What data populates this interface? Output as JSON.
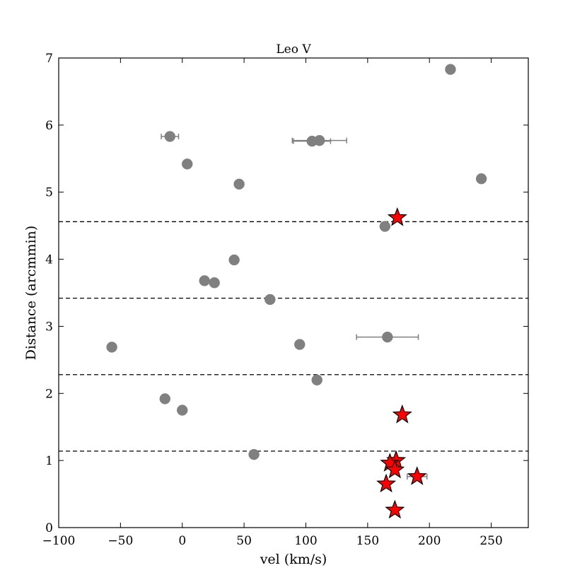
{
  "chart_data": {
    "type": "scatter",
    "title": "Leo V",
    "xlabel": "vel (km/s)",
    "ylabel": "Distance (arcmmin)",
    "xlim": [
      -100,
      280
    ],
    "ylim": [
      0,
      7
    ],
    "xticks": [
      -100,
      -50,
      0,
      50,
      100,
      150,
      200,
      250
    ],
    "xtick_labels": [
      "−100",
      "−50",
      "0",
      "50",
      "100",
      "150",
      "200",
      "250"
    ],
    "yticks": [
      0,
      1,
      2,
      3,
      4,
      5,
      6,
      7
    ],
    "ytick_labels": [
      "0",
      "1",
      "2",
      "3",
      "4",
      "5",
      "6",
      "7"
    ],
    "grid": false,
    "hlines": [
      1.14,
      2.28,
      3.42,
      4.56
    ],
    "series": [
      {
        "marker": "circle",
        "color": "#808080",
        "points": [
          {
            "x": 217,
            "y": 6.83
          },
          {
            "x": -10,
            "y": 5.83,
            "xerr": 7
          },
          {
            "x": 105,
            "y": 5.76,
            "xerr": 15
          },
          {
            "x": 111,
            "y": 5.77,
            "xerr": 22
          },
          {
            "x": 4,
            "y": 5.42
          },
          {
            "x": 242,
            "y": 5.2,
            "xerr": 3
          },
          {
            "x": 46,
            "y": 5.12
          },
          {
            "x": 164,
            "y": 4.49
          },
          {
            "x": 42,
            "y": 3.99
          },
          {
            "x": 18,
            "y": 3.68
          },
          {
            "x": 26,
            "y": 3.65
          },
          {
            "x": 71,
            "y": 3.4
          },
          {
            "x": 166,
            "y": 2.84,
            "xerr": 25
          },
          {
            "x": -57,
            "y": 2.69
          },
          {
            "x": 95,
            "y": 2.73
          },
          {
            "x": 109,
            "y": 2.2
          },
          {
            "x": -14,
            "y": 1.92
          },
          {
            "x": 0,
            "y": 1.75
          },
          {
            "x": 58,
            "y": 1.09
          }
        ]
      },
      {
        "marker": "star",
        "color": "#ff0000",
        "points": [
          {
            "x": 174,
            "y": 4.62
          },
          {
            "x": 178,
            "y": 1.68
          },
          {
            "x": 173,
            "y": 1.0
          },
          {
            "x": 168,
            "y": 0.96
          },
          {
            "x": 172,
            "y": 0.86
          },
          {
            "x": 190,
            "y": 0.76,
            "xerr": 8
          },
          {
            "x": 165,
            "y": 0.65
          },
          {
            "x": 172,
            "y": 0.26
          }
        ]
      }
    ]
  }
}
